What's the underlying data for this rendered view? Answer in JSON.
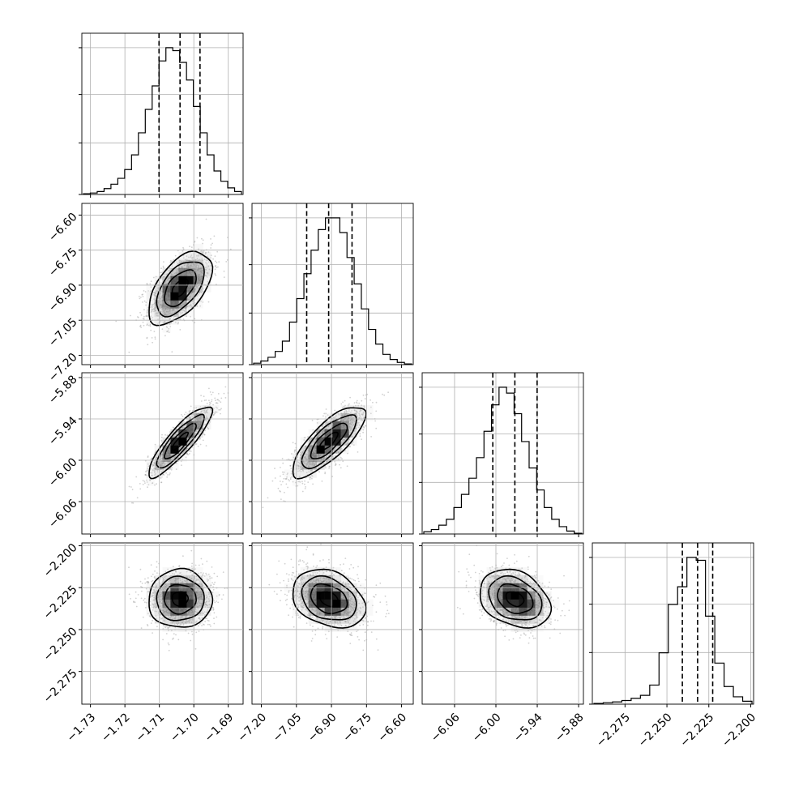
{
  "chart_data": {
    "type": "corner",
    "grid": true,
    "colors": {
      "line": "#000000",
      "grid": "#b0b0b0",
      "samples": "#9a9a9a",
      "background": "#ffffff"
    },
    "parameters": [
      {
        "range": [
          -1.7325,
          -1.6857
        ],
        "ticks": [
          {
            "value": -1.73,
            "label": "−1.73"
          },
          {
            "value": -1.72,
            "label": "−1.72"
          },
          {
            "value": -1.71,
            "label": "−1.71"
          },
          {
            "value": -1.7,
            "label": "−1.70"
          },
          {
            "value": -1.69,
            "label": "−1.69"
          }
        ],
        "hist": [
          0.005,
          0.01,
          0.02,
          0.04,
          0.07,
          0.11,
          0.17,
          0.27,
          0.42,
          0.58,
          0.74,
          0.91,
          1.0,
          0.98,
          0.9,
          0.78,
          0.6,
          0.42,
          0.27,
          0.16,
          0.09,
          0.045,
          0.02
        ],
        "quantiles": [
          -1.7101,
          -1.704,
          -1.6982
        ]
      },
      {
        "range": [
          -7.24,
          -6.55
        ],
        "ticks": [
          {
            "value": -7.2,
            "label": "−7.20"
          },
          {
            "value": -7.05,
            "label": "−7.05"
          },
          {
            "value": -6.9,
            "label": "−6.90"
          },
          {
            "value": -6.75,
            "label": "−6.75"
          },
          {
            "value": -6.6,
            "label": "−6.60"
          }
        ],
        "hist": [
          0.01,
          0.025,
          0.05,
          0.09,
          0.16,
          0.29,
          0.45,
          0.62,
          0.78,
          0.92,
          1.0,
          1.0,
          0.9,
          0.73,
          0.55,
          0.38,
          0.24,
          0.14,
          0.07,
          0.035,
          0.015,
          0.005
        ],
        "quantiles": [
          -7.006,
          -6.912,
          -6.812
        ]
      },
      {
        "range": [
          -6.107,
          -5.873
        ],
        "ticks": [
          {
            "value": -6.06,
            "label": "−6.06"
          },
          {
            "value": -6.0,
            "label": "−6.00"
          },
          {
            "value": -5.94,
            "label": "−5.94"
          },
          {
            "value": -5.88,
            "label": "−5.88"
          }
        ],
        "hist": [
          0.015,
          0.03,
          0.06,
          0.1,
          0.18,
          0.27,
          0.38,
          0.52,
          0.7,
          0.88,
          1.0,
          0.96,
          0.82,
          0.63,
          0.45,
          0.3,
          0.18,
          0.1,
          0.05,
          0.02,
          0.005
        ],
        "quantiles": [
          -6.0045,
          -5.9725,
          -5.9402
        ]
      },
      {
        "range": [
          -2.2945,
          -2.1983
        ],
        "ticks": [
          {
            "value": -2.275,
            "label": "−2.275"
          },
          {
            "value": -2.25,
            "label": "−2.250"
          },
          {
            "value": -2.225,
            "label": "−2.225"
          },
          {
            "value": -2.2,
            "label": "−2.200"
          }
        ],
        "hist": [
          0.005,
          0.01,
          0.015,
          0.025,
          0.04,
          0.06,
          0.13,
          0.35,
          0.68,
          0.8,
          1.0,
          0.98,
          0.6,
          0.28,
          0.12,
          0.05,
          0.02
        ],
        "quantiles": [
          -2.2408,
          -2.2317,
          -2.2227
        ]
      }
    ],
    "pairs": [
      {
        "row": 1,
        "col": 0,
        "center": [
          -1.704,
          -6.912
        ],
        "sigma": [
          0.0046,
          0.078
        ],
        "rho": 0.55
      },
      {
        "row": 2,
        "col": 0,
        "center": [
          -1.704,
          -5.9725
        ],
        "sigma": [
          0.0046,
          0.0257
        ],
        "rho": 0.87
      },
      {
        "row": 2,
        "col": 1,
        "center": [
          -6.912,
          -5.9725
        ],
        "sigma": [
          0.078,
          0.0257
        ],
        "rho": 0.78
      },
      {
        "row": 3,
        "col": 0,
        "center": [
          -1.704,
          -2.2317
        ],
        "sigma": [
          0.0046,
          0.0087
        ],
        "rho": 0.0
      },
      {
        "row": 3,
        "col": 1,
        "center": [
          -6.912,
          -2.2317
        ],
        "sigma": [
          0.078,
          0.0087
        ],
        "rho": -0.28
      },
      {
        "row": 3,
        "col": 2,
        "center": [
          -5.9725,
          -2.2317
        ],
        "sigma": [
          0.0257,
          0.0087
        ],
        "rho": -0.28
      }
    ]
  }
}
